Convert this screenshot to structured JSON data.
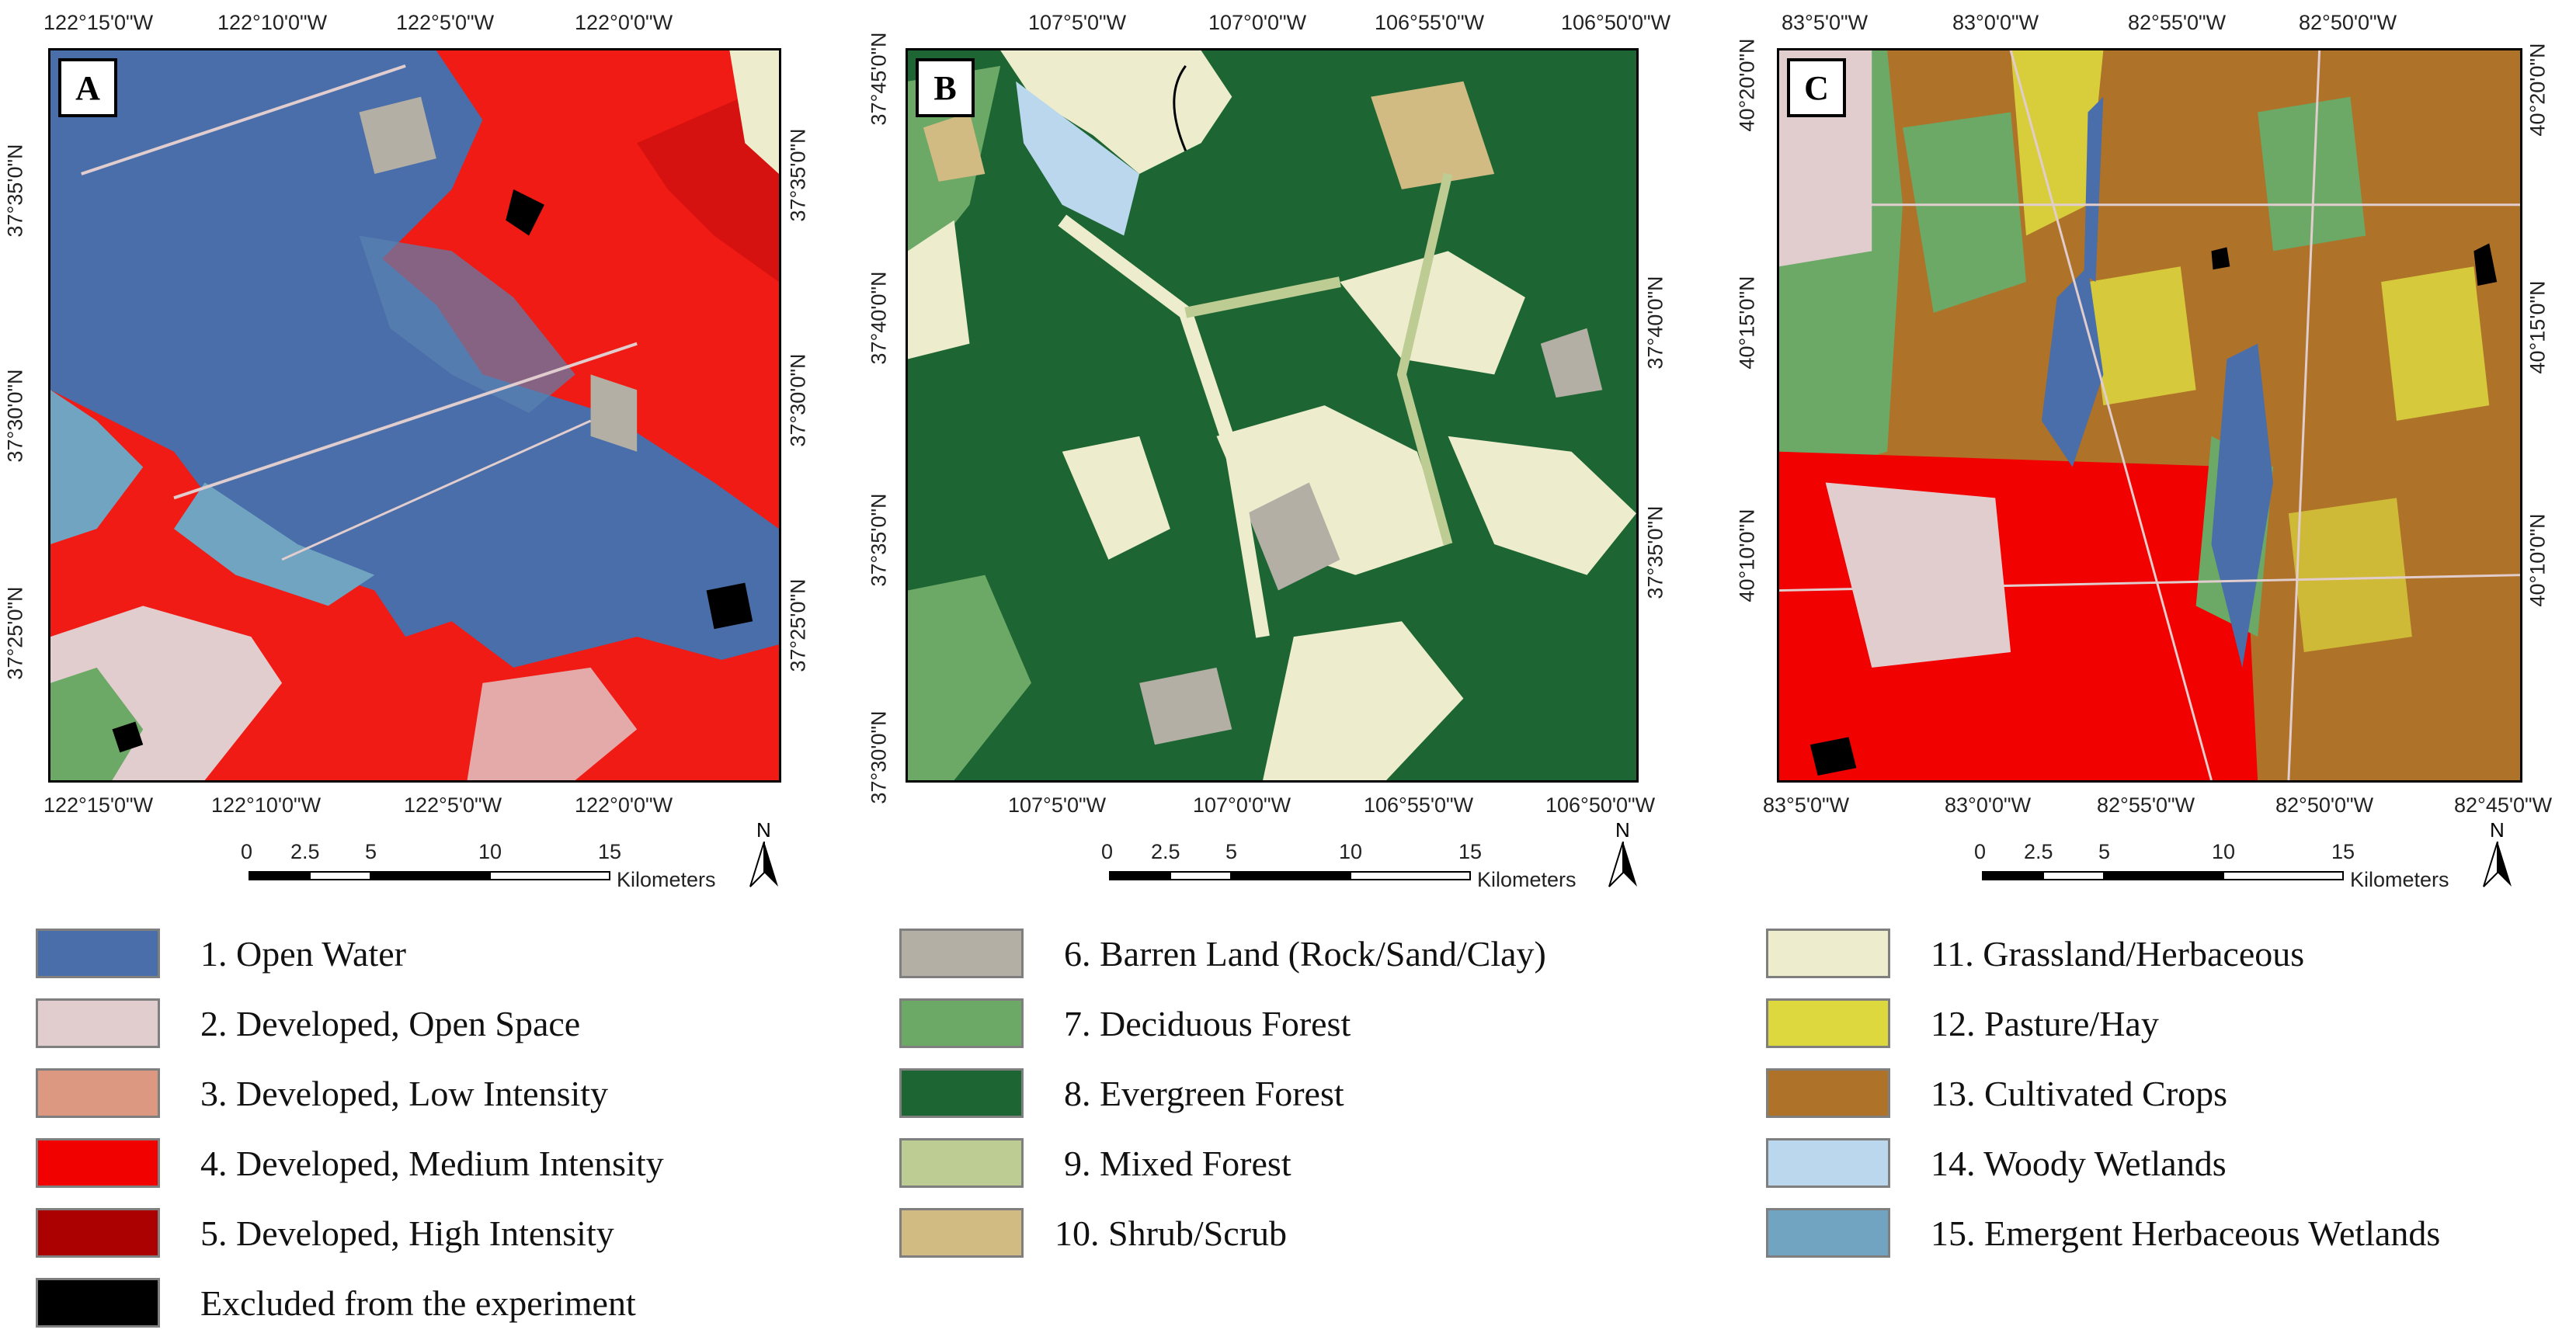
{
  "panels": [
    {
      "letter": "A",
      "top_ticks": [
        "122°15'0\"W",
        "122°10'0\"W",
        "122°5'0\"W",
        "122°0'0\"W"
      ],
      "bottom_ticks": [
        "122°15'0\"W",
        "122°10'0\"W",
        "122°5'0\"W",
        "122°0'0\"W"
      ],
      "left_ticks": [
        "37°35'0\"N",
        "37°30'0\"N",
        "37°25'0\"N"
      ],
      "right_ticks": [
        "37°35'0\"N",
        "37°30'0\"N",
        "37°25'0\"N"
      ]
    },
    {
      "letter": "B",
      "top_ticks": [
        "107°5'0\"W",
        "107°0'0\"W",
        "106°55'0\"W",
        "106°50'0\"W"
      ],
      "bottom_ticks": [
        "107°5'0\"W",
        "107°0'0\"W",
        "106°55'0\"W",
        "106°50'0\"W"
      ],
      "left_ticks": [
        "37°45'0\"N",
        "37°40'0\"N",
        "37°35'0\"N",
        "37°30'0\"N"
      ],
      "right_ticks": [
        "37°40'0\"N",
        "37°35'0\"N"
      ]
    },
    {
      "letter": "C",
      "top_ticks": [
        "83°5'0\"W",
        "83°0'0\"W",
        "82°55'0\"W",
        "82°50'0\"W"
      ],
      "bottom_ticks": [
        "83°5'0\"W",
        "83°0'0\"W",
        "82°55'0\"W",
        "82°50'0\"W",
        "82°45'0\"W"
      ],
      "left_ticks": [
        "40°20'0\"N",
        "40°15'0\"N",
        "40°10'0\"N"
      ],
      "right_ticks": [
        "40°20'0\"N",
        "40°15'0\"N",
        "40°10'0\"N"
      ]
    }
  ],
  "scalebar": {
    "labels": [
      "0",
      "2.5",
      "5",
      "10",
      "15"
    ],
    "unit": "Kilometers"
  },
  "north_label": "N",
  "legend": [
    {
      "label": "1. Open Water",
      "color": "#4a6ea9"
    },
    {
      "label": "2. Developed, Open Space",
      "color": "#e1cdce"
    },
    {
      "label": "3. Developed, Low Intensity",
      "color": "#dc9881"
    },
    {
      "label": "4. Developed, Medium Intensity",
      "color": "#f10100"
    },
    {
      "label": "5. Developed, High Intensity",
      "color": "#ab0101"
    },
    {
      "label": "Excluded from the experiment",
      "color": "#000000"
    },
    {
      "label": "6. Barren Land (Rock/Sand/Clay)",
      "color": "#b3afa4"
    },
    {
      "label": "7. Deciduous Forest",
      "color": "#6ca966"
    },
    {
      "label": "8. Evergreen Forest",
      "color": "#1d6533"
    },
    {
      "label": "9. Mixed Forest",
      "color": "#bdcc93"
    },
    {
      "label": "10. Shrub/Scrub",
      "color": "#d1bb82"
    },
    {
      "label": "11. Grassland/Herbaceous",
      "color": "#edeccd"
    },
    {
      "label": "12. Pasture/Hay",
      "color": "#ddd83e"
    },
    {
      "label": "13. Cultivated Crops",
      "color": "#ae7229"
    },
    {
      "label": "14. Woody Wetlands",
      "color": "#bbd7ed"
    },
    {
      "label": "15. Emergent Herbaceous Wetlands",
      "color": "#71a4c1"
    }
  ]
}
